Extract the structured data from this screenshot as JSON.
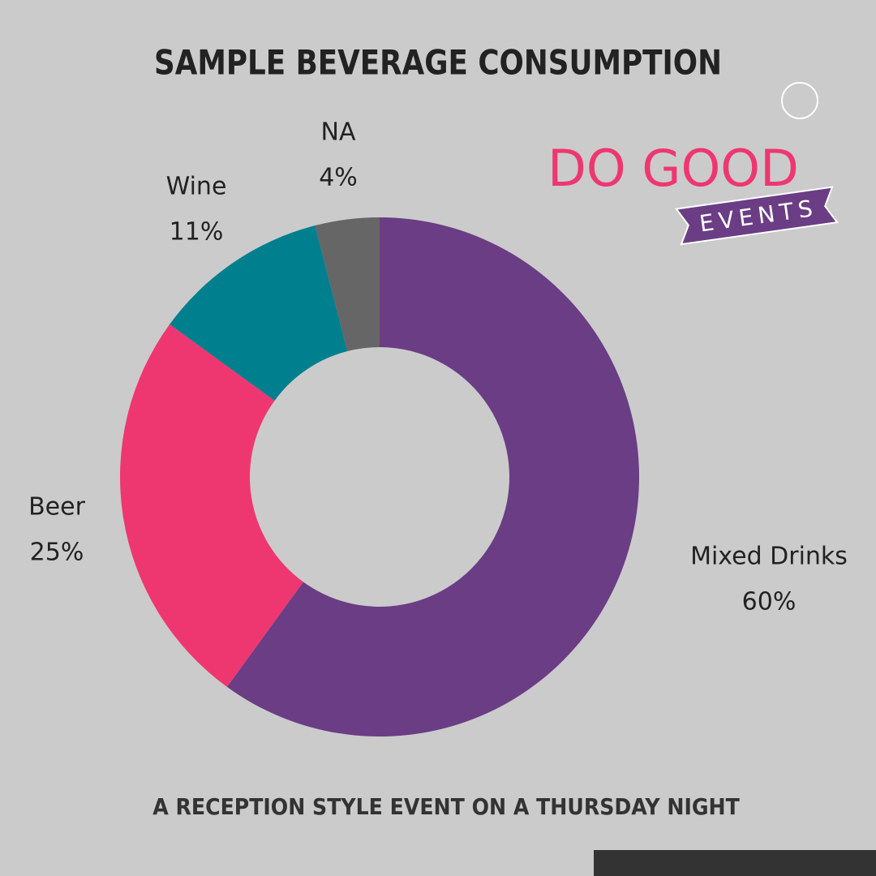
{
  "chart_data": {
    "type": "donut",
    "title": "SAMPLE BEVERAGE CONSUMPTION",
    "subtitle": "A RECEPTION STYLE EVENT ON A THURSDAY NIGHT",
    "categories": [
      "Mixed Drinks",
      "Beer",
      "Wine",
      "NA"
    ],
    "values": [
      60,
      25,
      11,
      4
    ],
    "value_labels": [
      "60%",
      "25%",
      "11%",
      "4%"
    ],
    "colors": [
      "#6a3d85",
      "#ee3770",
      "#007f8f",
      "#666666"
    ]
  },
  "logo": {
    "line1": "DO GOOD",
    "line2": "EVENTS"
  }
}
